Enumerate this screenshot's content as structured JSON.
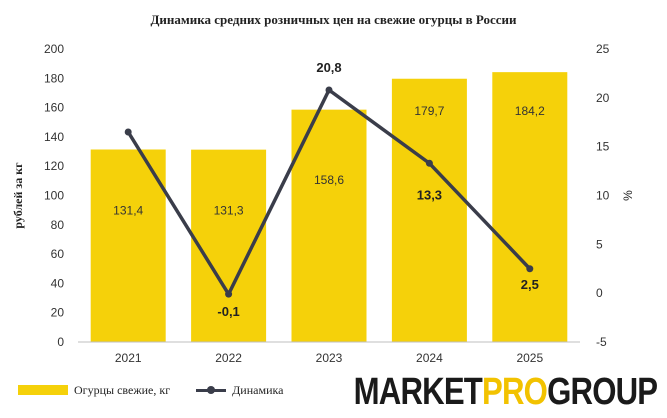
{
  "brand": {
    "part1": "MARKET",
    "part2": "PRO",
    "part3": "GROUP"
  },
  "colors": {
    "bar": "#f5d10a",
    "line": "#3a3d4a",
    "axis_text": "#333333"
  },
  "chart_data": {
    "type": "bar",
    "title": "Динамика средних розничных цен на свежие огурцы в России",
    "categories": [
      "2021",
      "2022",
      "2023",
      "2024",
      "2025"
    ],
    "series": [
      {
        "name": "Огурцы свежие, кг",
        "type": "bar",
        "axis": "left",
        "values": [
          131.4,
          131.3,
          158.6,
          179.7,
          184.2
        ],
        "labels": [
          "131,4",
          "131,3",
          "158,6",
          "179,7",
          "184,2"
        ]
      },
      {
        "name": "Динамика",
        "type": "line",
        "axis": "right",
        "values": [
          16.5,
          -0.1,
          20.8,
          13.3,
          2.5
        ],
        "labels": [
          "",
          "-0,1",
          "20,8",
          "13,3",
          "2,5"
        ]
      }
    ],
    "ylabel": "рублей за кг",
    "ylabel_right": "%",
    "ylim": [
      0,
      200
    ],
    "ylim_right": [
      -5,
      25
    ],
    "yticks": [
      "0",
      "20",
      "40",
      "60",
      "80",
      "100",
      "120",
      "140",
      "160",
      "180",
      "200"
    ],
    "yticks_right": [
      "-5",
      "0",
      "5",
      "10",
      "15",
      "20",
      "25"
    ],
    "grid": false,
    "legend_position": "bottom-left"
  }
}
